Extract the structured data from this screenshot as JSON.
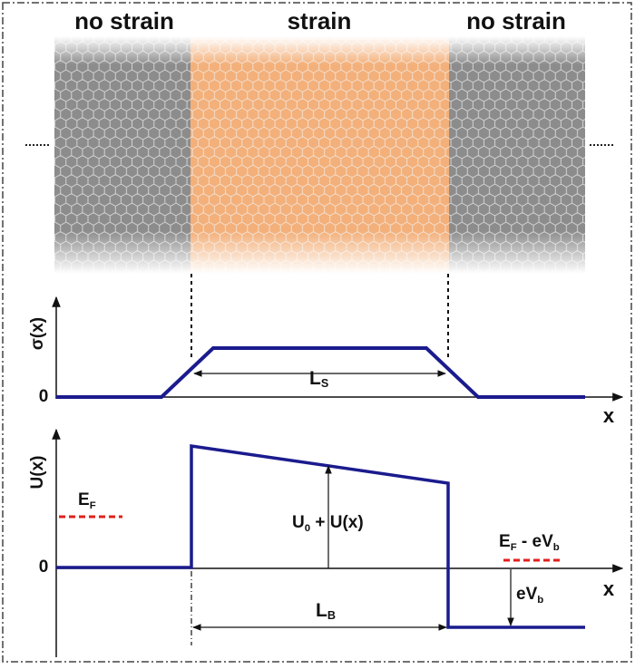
{
  "lattice": {
    "labels": [
      "no strain",
      "strain",
      "no strain"
    ]
  },
  "strain_plot": {
    "y_label": "σ(x)",
    "zero_label": "0",
    "x_label": "x",
    "width_label": [
      "L",
      "S"
    ]
  },
  "potential_plot": {
    "y_label": "U(x)",
    "zero_label": "0",
    "x_label": "x",
    "fermi_label": [
      "E",
      "F"
    ],
    "barrier_label": [
      "U",
      "0",
      " + U(x)"
    ],
    "bias_fermi_label": [
      "E",
      "F",
      " - eV",
      "b"
    ],
    "bias_label": [
      "eV",
      "b"
    ],
    "width_label": [
      "L",
      "B"
    ]
  }
}
